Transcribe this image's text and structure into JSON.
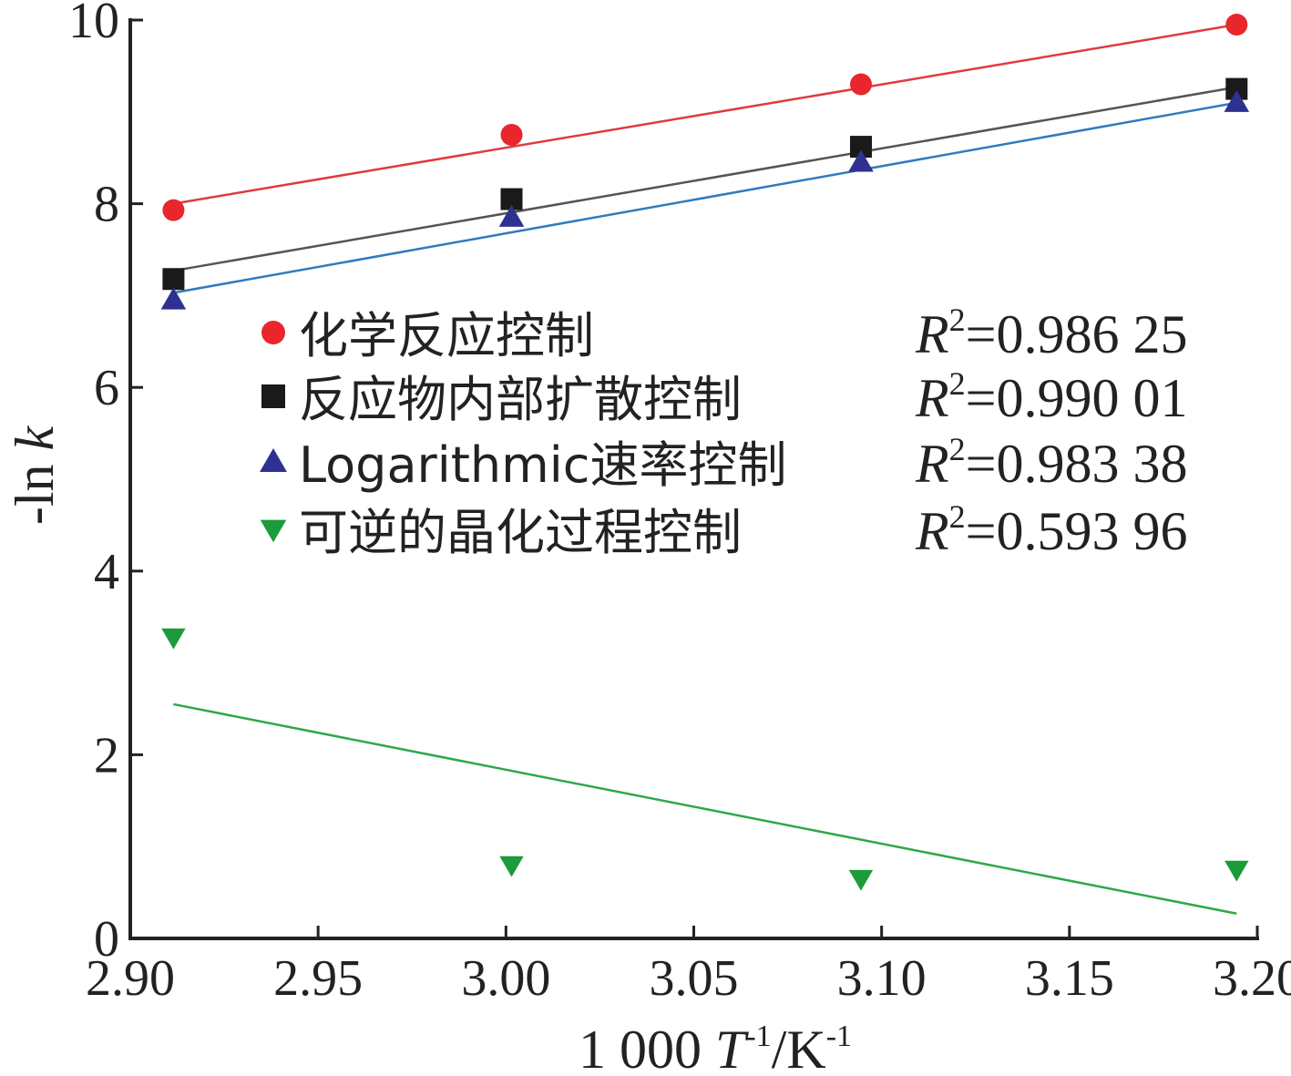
{
  "chart_data": {
    "type": "scatter",
    "xlabel": {
      "prefix": "1 000 ",
      "T": "T",
      "sup1": "-1",
      "unit": "/K",
      "sup2": "-1"
    },
    "ylabel": {
      "prefix": "-ln ",
      "k": "k"
    },
    "xlim": [
      2.9,
      3.2
    ],
    "ylim": [
      0,
      10
    ],
    "x_ticks": [
      "2.90",
      "2.95",
      "3.00",
      "3.05",
      "3.10",
      "3.15",
      "3.20"
    ],
    "y_ticks": [
      "0",
      "2",
      "4",
      "6",
      "8",
      "10"
    ],
    "series": [
      {
        "name": "化学反应控制",
        "marker": "circle",
        "color": "#e8262b",
        "line_color": "#e03a3e",
        "r2_label": "R",
        "r2_value": "=0.986 25",
        "x": [
          2.9115,
          3.0015,
          3.0945,
          3.1945
        ],
        "y": [
          7.93,
          8.75,
          9.3,
          9.95
        ],
        "fit": [
          [
            2.9115,
            8.0
          ],
          [
            3.1945,
            9.95
          ]
        ]
      },
      {
        "name": "反应物内部扩散控制",
        "marker": "square",
        "color": "#1a1a1a",
        "line_color": "#555555",
        "r2_label": "R",
        "r2_value": "=0.990 01",
        "x": [
          2.9115,
          3.0015,
          3.0945,
          3.1945
        ],
        "y": [
          7.18,
          8.05,
          8.62,
          9.25
        ],
        "fit": [
          [
            2.9115,
            7.27
          ],
          [
            3.1945,
            9.27
          ]
        ]
      },
      {
        "name": "Logarithmic速率控制",
        "marker": "triangle-up",
        "color": "#2e3192",
        "line_color": "#2e7bbf",
        "r2_label": "R",
        "r2_value": "=0.983 38",
        "x": [
          2.9115,
          3.0015,
          3.0945,
          3.1945
        ],
        "y": [
          6.95,
          7.85,
          8.45,
          9.1
        ],
        "fit": [
          [
            2.9115,
            7.03
          ],
          [
            3.1945,
            9.1
          ]
        ]
      },
      {
        "name": "可逆的晶化过程控制",
        "marker": "triangle-down",
        "color": "#1c9b3a",
        "line_color": "#2ea84a",
        "r2_label": "R",
        "r2_value": "=0.593 96",
        "x": [
          2.9115,
          3.0015,
          3.0945,
          3.1945
        ],
        "y": [
          3.28,
          0.8,
          0.65,
          0.75
        ],
        "fit": [
          [
            2.9115,
            2.55
          ],
          [
            3.1945,
            0.27
          ]
        ]
      }
    ]
  }
}
